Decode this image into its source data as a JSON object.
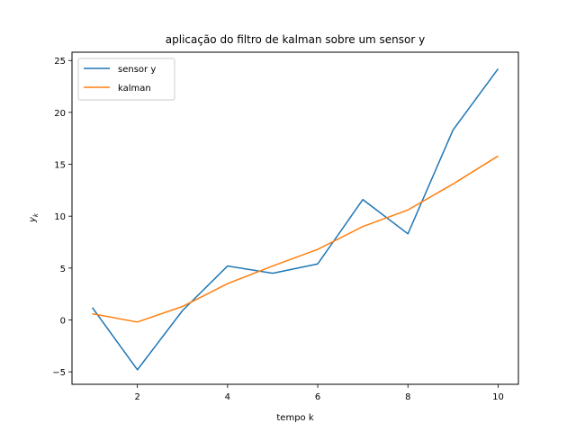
{
  "chart_data": {
    "type": "line",
    "title": "aplicação do filtro de kalman sobre um sensor y",
    "xlabel": "tempo k",
    "ylabel": "y",
    "ylabel_subscript": "k",
    "xlim": [
      0.55,
      10.45
    ],
    "ylim": [
      -6.2,
      25.8
    ],
    "xticks": [
      2,
      4,
      6,
      8,
      10
    ],
    "yticks": [
      -5,
      0,
      5,
      10,
      15,
      20,
      25
    ],
    "grid": false,
    "legend_position": "top-left",
    "x": [
      1,
      2,
      3,
      4,
      5,
      6,
      7,
      8,
      9,
      10
    ],
    "series": [
      {
        "name": "sensor y",
        "color": "#1f77b4",
        "values": [
          1.2,
          -4.8,
          0.9,
          5.2,
          4.5,
          5.4,
          11.6,
          8.3,
          18.3,
          24.2
        ]
      },
      {
        "name": "kalman",
        "color": "#ff7f0e",
        "values": [
          0.6,
          -0.2,
          1.3,
          3.5,
          5.2,
          6.8,
          9.0,
          10.6,
          13.1,
          15.8
        ]
      }
    ]
  }
}
